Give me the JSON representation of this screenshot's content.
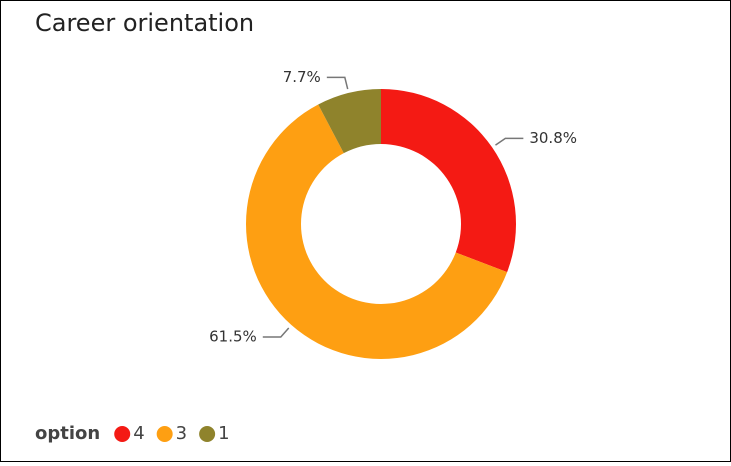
{
  "chart_data": {
    "type": "donut",
    "title": "Career orientation",
    "legend_title": "option",
    "categories": [
      "4",
      "3",
      "1"
    ],
    "values": [
      30.8,
      61.5,
      7.7
    ],
    "value_labels": [
      "30.8%",
      "61.5%",
      "7.7%"
    ],
    "colors": [
      "#f41a14",
      "#fe9f12",
      "#8f832c"
    ],
    "legend": "bottom-left"
  }
}
